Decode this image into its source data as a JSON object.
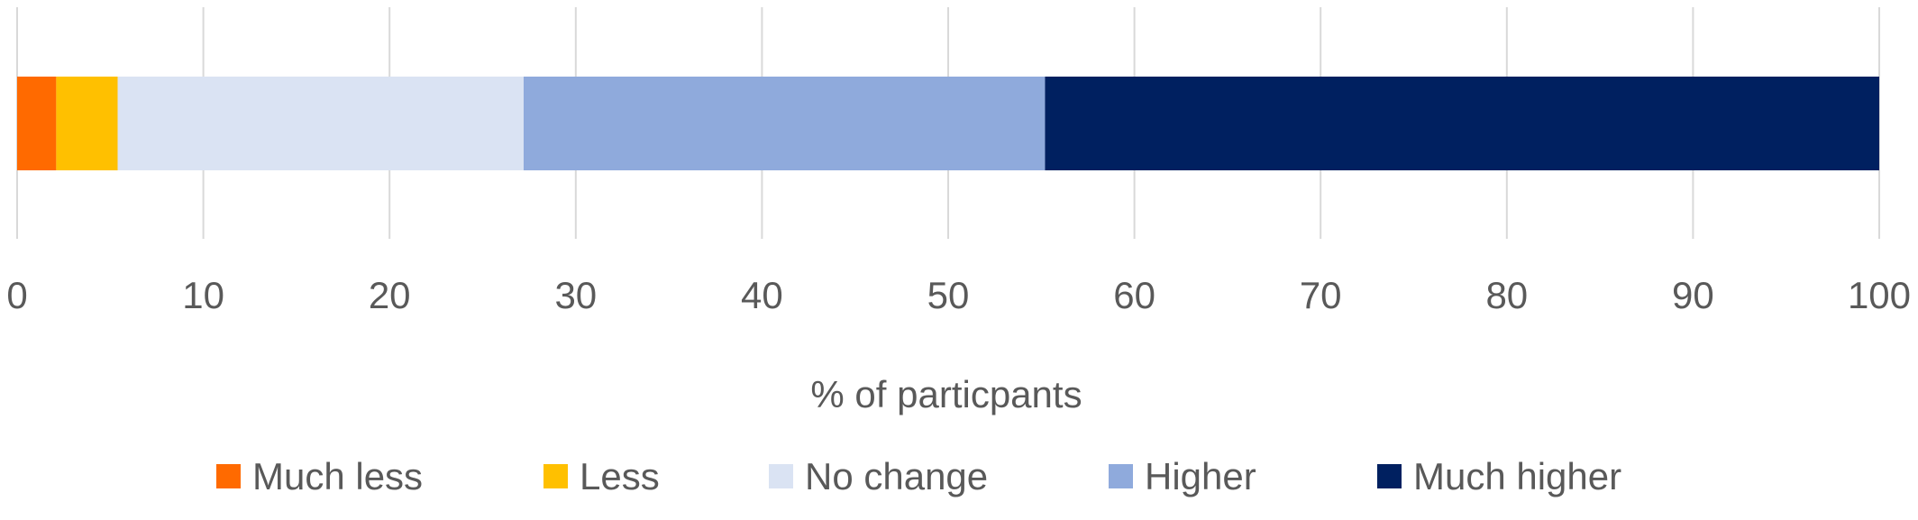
{
  "chart_data": {
    "type": "bar",
    "orientation": "horizontal",
    "stacked": true,
    "title": "",
    "xlabel": "% of particpants",
    "ylabel": "",
    "xlim": [
      0,
      100
    ],
    "x_ticks": [
      0,
      10,
      20,
      30,
      40,
      50,
      60,
      70,
      80,
      90,
      100
    ],
    "grid": true,
    "legend_position": "bottom",
    "series": [
      {
        "name": "Much less",
        "values": [
          2.1
        ],
        "color": "#FF6A00"
      },
      {
        "name": "Less",
        "values": [
          3.3
        ],
        "color": "#FFC000"
      },
      {
        "name": "No change",
        "values": [
          21.8
        ],
        "color": "#DAE3F3"
      },
      {
        "name": "Higher",
        "values": [
          28.0
        ],
        "color": "#8FAADC"
      },
      {
        "name": "Much higher",
        "values": [
          44.8
        ],
        "color": "#002060"
      }
    ]
  }
}
